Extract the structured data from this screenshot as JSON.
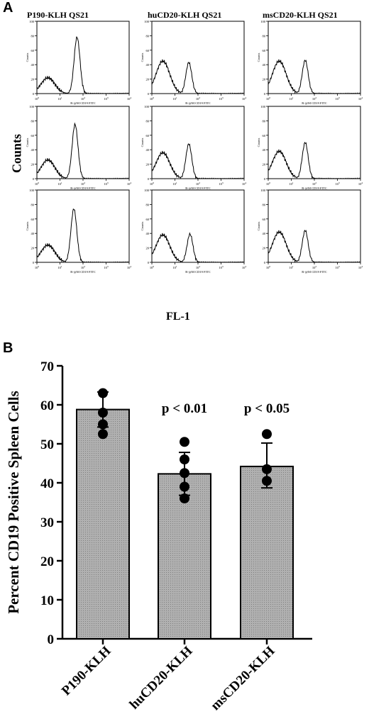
{
  "panel_a": {
    "letter": "A",
    "column_titles": [
      "P190-KLH QS21",
      "huCD20-KLH QS21",
      "msCD20-KLH QS21"
    ],
    "y_label": "Counts",
    "x_label": "FL-1",
    "mini_y_label": "Counts",
    "mini_x_label": "R-@M CD19 FITC",
    "y_ticks": [
      "0",
      "20",
      "40",
      "60",
      "80",
      "100"
    ],
    "x_ticks": [
      "10",
      "10",
      "10",
      "10",
      "10"
    ],
    "x_tick_exponents": [
      "0",
      "1",
      "2",
      "3",
      "4"
    ]
  },
  "panel_b": {
    "letter": "B"
  },
  "chart_data": [
    {
      "type": "line",
      "description_rows": 3,
      "columns": 3,
      "xlabel": "FL-1",
      "ylabel": "Counts",
      "xscale": "log",
      "xlim": [
        1,
        10000
      ],
      "ylim": [
        0,
        100
      ],
      "histograms": [
        {
          "row": 0,
          "col": 0,
          "peaks": [
            {
              "x": 3,
              "y": 22
            },
            {
              "x": 55,
              "y": 78
            }
          ]
        },
        {
          "row": 0,
          "col": 1,
          "peaks": [
            {
              "x": 3,
              "y": 45
            },
            {
              "x": 40,
              "y": 43
            }
          ]
        },
        {
          "row": 0,
          "col": 2,
          "peaks": [
            {
              "x": 3,
              "y": 45
            },
            {
              "x": 40,
              "y": 46
            }
          ]
        },
        {
          "row": 1,
          "col": 0,
          "peaks": [
            {
              "x": 3,
              "y": 26
            },
            {
              "x": 45,
              "y": 75
            }
          ]
        },
        {
          "row": 1,
          "col": 1,
          "peaks": [
            {
              "x": 3,
              "y": 36
            },
            {
              "x": 40,
              "y": 48
            }
          ]
        },
        {
          "row": 1,
          "col": 2,
          "peaks": [
            {
              "x": 3,
              "y": 38
            },
            {
              "x": 40,
              "y": 50
            }
          ]
        },
        {
          "row": 2,
          "col": 0,
          "peaks": [
            {
              "x": 3,
              "y": 24
            },
            {
              "x": 40,
              "y": 74
            }
          ]
        },
        {
          "row": 2,
          "col": 1,
          "peaks": [
            {
              "x": 3,
              "y": 38
            },
            {
              "x": 45,
              "y": 39
            }
          ]
        },
        {
          "row": 2,
          "col": 2,
          "peaks": [
            {
              "x": 3,
              "y": 42
            },
            {
              "x": 40,
              "y": 44
            }
          ]
        }
      ]
    },
    {
      "type": "bar",
      "categories": [
        "P190-KLH",
        "huCD20-KLH",
        "msCD20-KLH"
      ],
      "values": [
        58.8,
        42.3,
        44.2
      ],
      "error_up": [
        4.5,
        5.5,
        6.0
      ],
      "error_down": [
        4.5,
        5.5,
        5.5
      ],
      "points": [
        [
          63,
          58,
          55,
          52.5
        ],
        [
          50.5,
          46,
          42.5,
          39,
          36
        ],
        [
          52.5,
          43.5,
          40.5
        ]
      ],
      "annotations": [
        "",
        "p < 0.01",
        "p < 0.05"
      ],
      "ylabel": "Percent CD19 Positive Spleen Cells",
      "yticks": [
        0,
        10,
        20,
        30,
        40,
        50,
        60,
        70
      ],
      "ylim": [
        0,
        70
      ],
      "grid": false,
      "bar_color": "#b0b0b0"
    }
  ]
}
